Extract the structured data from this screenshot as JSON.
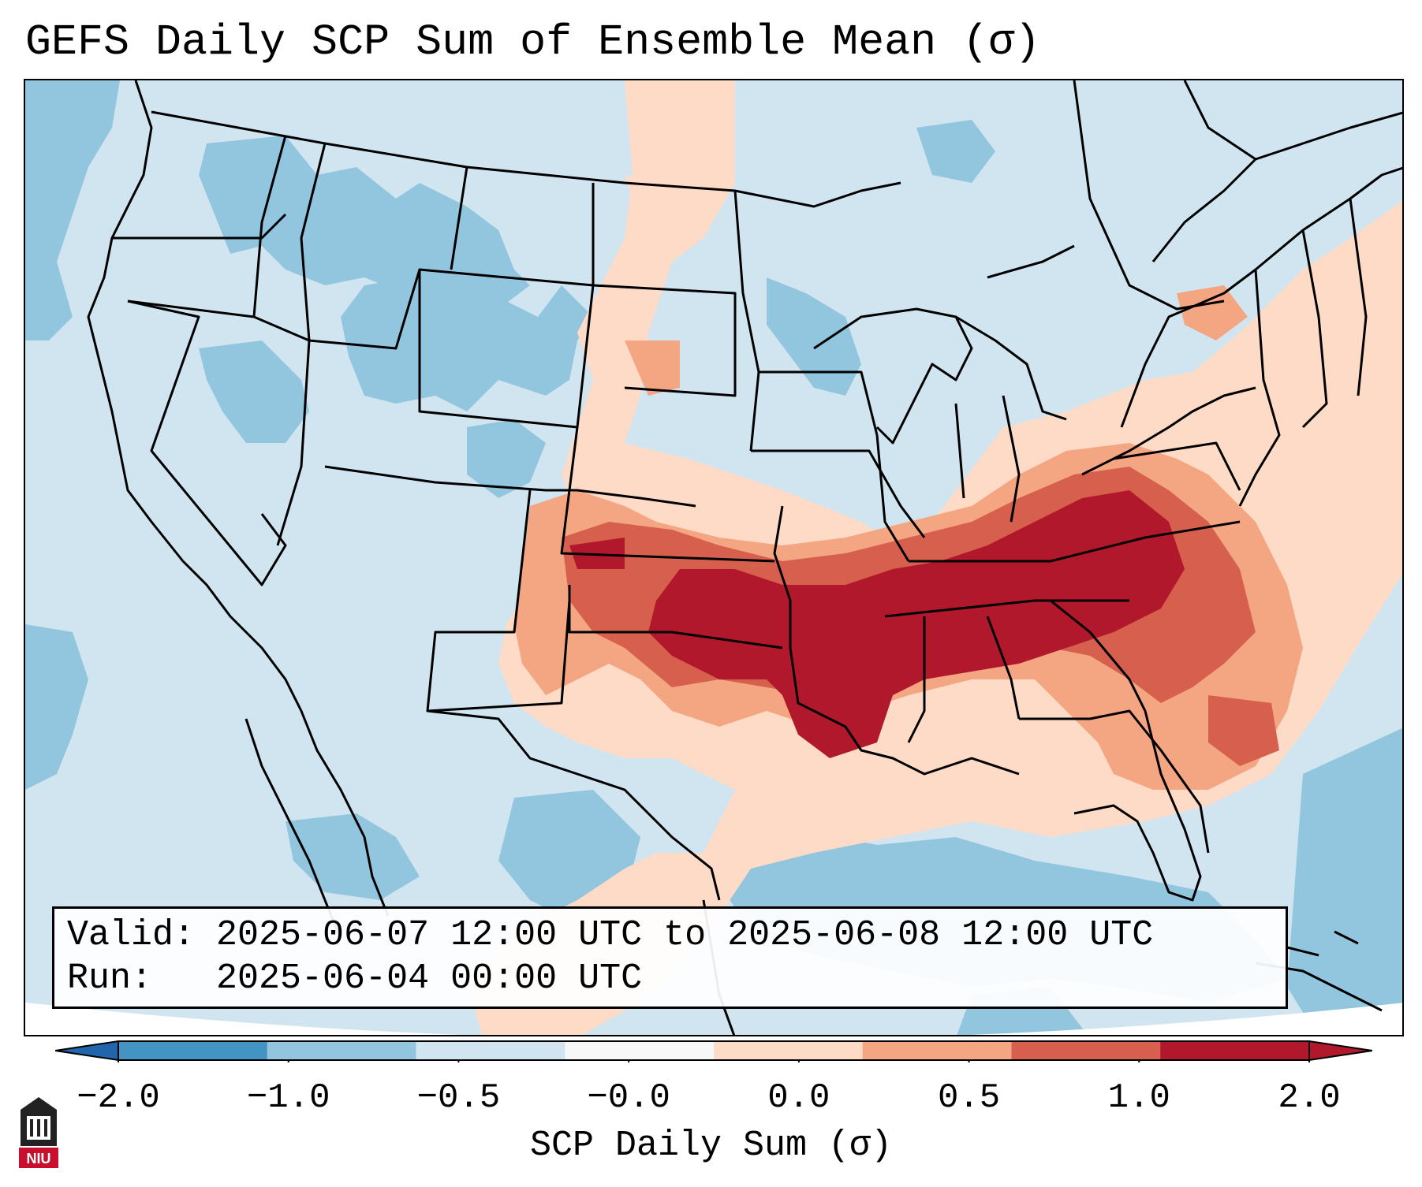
{
  "title": "GEFS Daily SCP Sum of Ensemble Mean (σ)",
  "map": {
    "projection": "Lambert Conformal (CONUS)",
    "states_drawn": true,
    "colors": {
      "strong_negative": "#92c5de",
      "weak_negative": "#d1e5f0",
      "weak_positive": "#fddbc7",
      "moderate_positive": "#f4a582",
      "strong_positive": "#d6604d",
      "extreme_positive": "#b2182b",
      "outside_domain": "#ffffff"
    }
  },
  "info": {
    "valid_line": "Valid: 2025-06-07 12:00 UTC to 2025-06-08 12:00 UTC",
    "run_line": "Run:   2025-06-04 00:00 UTC"
  },
  "colorbar": {
    "label": "SCP Daily Sum (σ)",
    "ticks": [
      "−2.0",
      "−1.0",
      "−0.5",
      "−0.0",
      "0.0",
      "0.5",
      "1.0",
      "2.0"
    ],
    "colors": [
      "#4393c3",
      "#92c5de",
      "#d1e5f0",
      "#f7f7f7",
      "#fddbc7",
      "#f4a582",
      "#d6604d",
      "#b2182b"
    ],
    "extend_low_color": "#2166ac",
    "extend_high_color": "#b2182b"
  },
  "logo": {
    "text": "NIU",
    "color": "#c8102e"
  }
}
